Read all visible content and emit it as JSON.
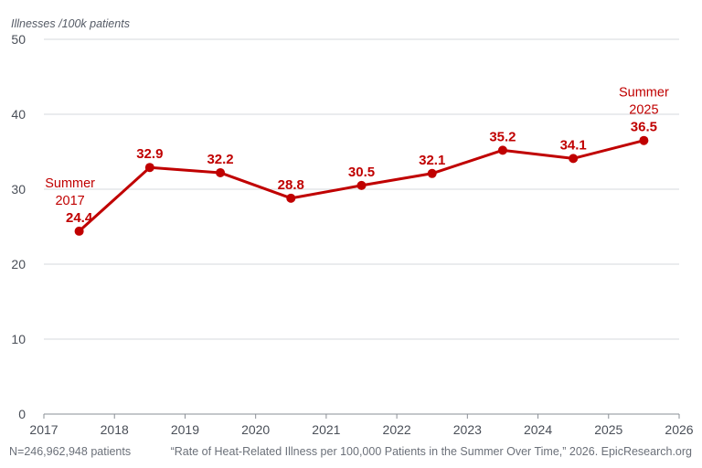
{
  "chart_data": {
    "type": "line",
    "ylabel": "Illnesses /100k patients",
    "xlabel": "",
    "title": "",
    "ylim": [
      0,
      50
    ],
    "yticks": [
      0,
      10,
      20,
      30,
      40,
      50
    ],
    "xlim": [
      2017,
      2026
    ],
    "xticks": [
      2017,
      2018,
      2019,
      2020,
      2021,
      2022,
      2023,
      2024,
      2025,
      2026
    ],
    "grid": "horizontal",
    "series": [
      {
        "x": [
          2017.5,
          2018.5,
          2019.5,
          2020.5,
          2021.5,
          2022.5,
          2023.5,
          2024.5,
          2025.5
        ],
        "values": [
          24.4,
          32.9,
          32.2,
          28.8,
          30.5,
          32.1,
          35.2,
          34.1,
          36.5
        ],
        "labels": [
          "24.4",
          "32.9",
          "32.2",
          "28.8",
          "30.5",
          "32.1",
          "35.2",
          "34.1",
          "36.5"
        ]
      }
    ],
    "annotations": [
      {
        "lines": [
          "Summer",
          "2017"
        ],
        "point_index": 0
      },
      {
        "lines": [
          "Summer",
          "2025"
        ],
        "point_index": 8
      }
    ],
    "footnote_left": "N=246,962,948 patients",
    "footnote_right": "“Rate of Heat-Related Illness per 100,000 Patients in the Summer Over Time,” 2026. EpicResearch.org"
  },
  "colors": {
    "series": "#c00000",
    "grid": "#d6d8dc",
    "text": "#4a4f58"
  }
}
